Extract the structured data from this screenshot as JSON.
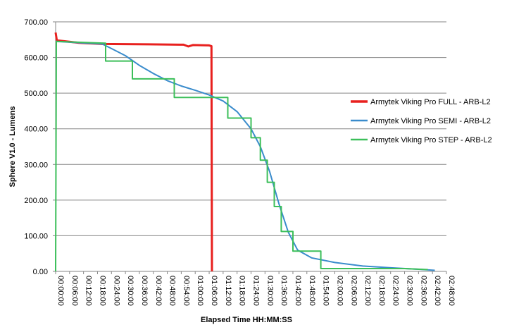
{
  "chart_data": {
    "type": "line",
    "xlabel": "Elapsed Time HH:MM:SS",
    "ylabel": "Sphere V1.0 - Lumens",
    "xlim": [
      0,
      168
    ],
    "xticks": [
      {
        "value": 0,
        "label": "00:00:00"
      },
      {
        "value": 6,
        "label": "00:06:00"
      },
      {
        "value": 12,
        "label": "00:12:00"
      },
      {
        "value": 18,
        "label": "00:18:00"
      },
      {
        "value": 24,
        "label": "00:24:00"
      },
      {
        "value": 30,
        "label": "00:30:00"
      },
      {
        "value": 36,
        "label": "00:36:00"
      },
      {
        "value": 42,
        "label": "00:42:00"
      },
      {
        "value": 48,
        "label": "00:48:00"
      },
      {
        "value": 54,
        "label": "00:54:00"
      },
      {
        "value": 60,
        "label": "01:00:00"
      },
      {
        "value": 66,
        "label": "01:06:00"
      },
      {
        "value": 72,
        "label": "01:12:00"
      },
      {
        "value": 78,
        "label": "01:18:00"
      },
      {
        "value": 84,
        "label": "01:24:00"
      },
      {
        "value": 90,
        "label": "01:30:00"
      },
      {
        "value": 96,
        "label": "01:36:00"
      },
      {
        "value": 102,
        "label": "01:42:00"
      },
      {
        "value": 108,
        "label": "01:48:00"
      },
      {
        "value": 114,
        "label": "01:54:00"
      },
      {
        "value": 120,
        "label": "02:00:00"
      },
      {
        "value": 126,
        "label": "02:06:00"
      },
      {
        "value": 132,
        "label": "02:12:00"
      },
      {
        "value": 138,
        "label": "02:18:00"
      },
      {
        "value": 144,
        "label": "02:24:00"
      },
      {
        "value": 150,
        "label": "02:30:00"
      },
      {
        "value": 156,
        "label": "02:36:00"
      },
      {
        "value": 162,
        "label": "02:42:00"
      },
      {
        "value": 168,
        "label": "02:48:00"
      }
    ],
    "ylim": [
      0,
      700
    ],
    "yticks": [
      {
        "value": 0,
        "label": "0.00"
      },
      {
        "value": 100,
        "label": "100.00"
      },
      {
        "value": 200,
        "label": "200.00"
      },
      {
        "value": 300,
        "label": "300.00"
      },
      {
        "value": 400,
        "label": "400.00"
      },
      {
        "value": 500,
        "label": "500.00"
      },
      {
        "value": 600,
        "label": "600.00"
      },
      {
        "value": 700,
        "label": "700.00"
      }
    ],
    "grid": true,
    "legend": "right",
    "series": [
      {
        "name": "Armytek Viking Pro FULL - ARB-L2",
        "color": "#e8201e",
        "width": 3,
        "x": [
          0,
          0.5,
          10,
          20,
          40,
          55,
          57,
          59,
          66,
          67,
          67.2
        ],
        "values": [
          670,
          648,
          641,
          638,
          637,
          636,
          631,
          635,
          634,
          632,
          0
        ]
      },
      {
        "name": "Armytek Viking Pro SEMI - ARB-L2",
        "color": "#3a8ccc",
        "width": 2,
        "x": [
          0,
          20,
          24,
          30,
          36,
          42,
          48,
          54,
          60,
          66,
          72,
          78,
          84,
          88,
          92,
          96,
          100,
          104,
          110,
          120,
          132,
          144,
          156,
          163
        ],
        "values": [
          645,
          638,
          625,
          605,
          578,
          555,
          535,
          520,
          508,
          495,
          478,
          448,
          400,
          350,
          280,
          190,
          110,
          60,
          38,
          25,
          15,
          10,
          6,
          3
        ]
      },
      {
        "name": "Armytek Viking Pro STEP - ARB-L2",
        "color": "#3cbf5a",
        "width": 2,
        "x": [
          0,
          0.3,
          21.5,
          21.5,
          33,
          33,
          51,
          51,
          74,
          74,
          84,
          84,
          88,
          88,
          91,
          91,
          94,
          94,
          97,
          97,
          102,
          102,
          114,
          114,
          150,
          160
        ],
        "values": [
          0,
          645,
          640,
          590,
          590,
          540,
          540,
          488,
          488,
          430,
          430,
          375,
          375,
          312,
          312,
          250,
          250,
          182,
          182,
          112,
          112,
          57,
          57,
          8,
          8,
          5
        ]
      }
    ]
  }
}
